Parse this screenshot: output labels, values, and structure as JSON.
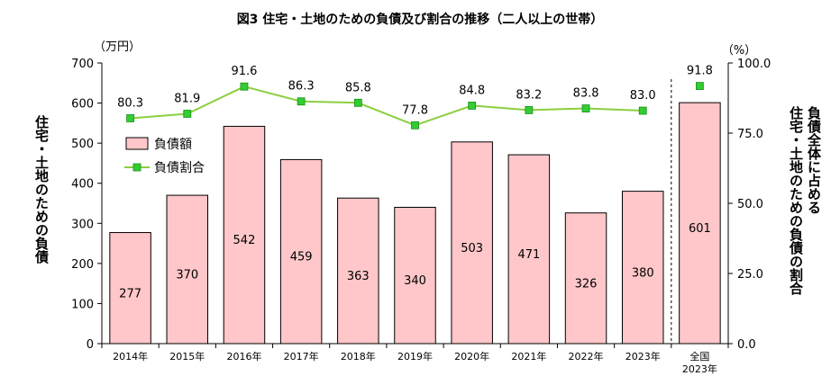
{
  "chart_data": {
    "type": "bar",
    "title": "図3 住宅・土地のための負債及び割合の推移（二人以上の世帯）",
    "left_unit": "（万円）",
    "right_unit": "（%）",
    "left_axis_label": "住宅・土地のための負債",
    "right_axis_label_lines": [
      "負債全体に占める",
      "住宅・土地のための負債の割合"
    ],
    "categories": [
      [
        "2014年"
      ],
      [
        "2015年"
      ],
      [
        "2016年"
      ],
      [
        "2017年"
      ],
      [
        "2018年"
      ],
      [
        "2019年"
      ],
      [
        "2020年"
      ],
      [
        "2021年"
      ],
      [
        "2022年"
      ],
      [
        "2023年"
      ],
      [
        "全国",
        "2023年"
      ]
    ],
    "left_ticks": [
      "0",
      "100",
      "200",
      "300",
      "400",
      "500",
      "600",
      "700"
    ],
    "right_ticks": [
      "0.0",
      "25.0",
      "50.0",
      "75.0",
      "100.0"
    ],
    "ylim_left": [
      0,
      700
    ],
    "ylim_right": [
      0,
      100
    ],
    "series": [
      {
        "name": "負債額",
        "kind": "bar",
        "axis": "left",
        "values": [
          277,
          370,
          542,
          459,
          363,
          340,
          503,
          471,
          326,
          380,
          601
        ],
        "labels": [
          "277",
          "370",
          "542",
          "459",
          "363",
          "340",
          "503",
          "471",
          "326",
          "380",
          "601"
        ],
        "fill": "#ffc7c9",
        "stroke": "#000000"
      },
      {
        "name": "負債割合",
        "kind": "line",
        "axis": "right",
        "values": [
          80.3,
          81.9,
          91.6,
          86.3,
          85.8,
          77.8,
          84.8,
          83.2,
          83.8,
          83.0,
          91.8
        ],
        "labels": [
          "80.3",
          "81.9",
          "91.6",
          "86.3",
          "85.8",
          "77.8",
          "84.8",
          "83.2",
          "83.8",
          "83.0",
          "91.8"
        ],
        "color": "#8ccf3f",
        "marker_color": "#33cc33"
      }
    ],
    "separator_before_index": 10,
    "legend": "upper-left"
  }
}
